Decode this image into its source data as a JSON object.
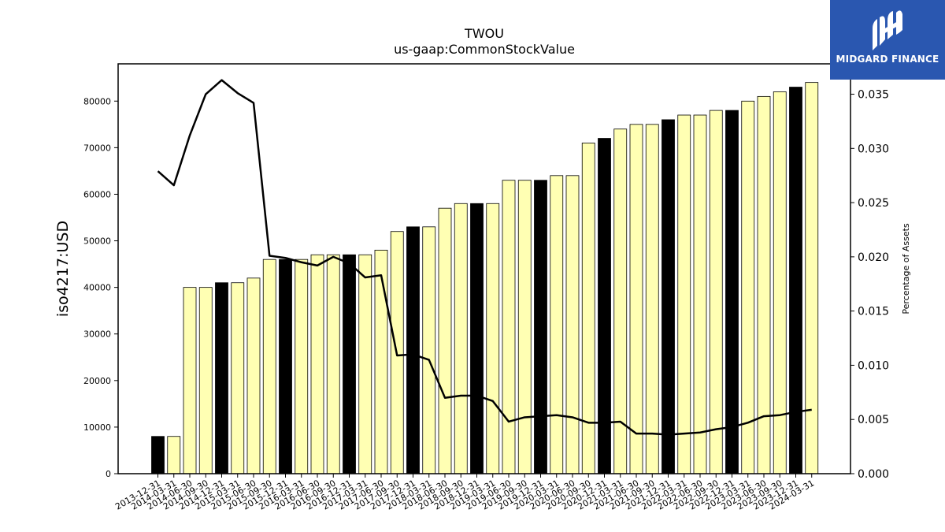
{
  "chart_data": {
    "type": "bar",
    "title": "TWOU",
    "subtitle": "us-gaap:CommonStockValue",
    "ylabel": "iso4217:USD",
    "y2label": "Percentage of Assets",
    "ylim": [
      0,
      88000
    ],
    "y2lim": [
      0,
      0.0378
    ],
    "yticks": [
      "0",
      "10000",
      "20000",
      "30000",
      "40000",
      "50000",
      "60000",
      "70000",
      "80000"
    ],
    "y2ticks": [
      "0.000",
      "0.005",
      "0.010",
      "0.015",
      "0.020",
      "0.025",
      "0.030",
      "0.035"
    ],
    "categories": [
      "2013-12-31",
      "2014-03-31",
      "2014-06-30",
      "2014-09-30",
      "2014-12-31",
      "2015-03-31",
      "2015-06-30",
      "2015-09-30",
      "2015-12-31",
      "2016-03-31",
      "2016-06-30",
      "2016-09-30",
      "2016-12-31",
      "2017-03-31",
      "2017-06-30",
      "2017-09-30",
      "2017-12-31",
      "2018-03-31",
      "2018-06-30",
      "2018-09-30",
      "2018-12-31",
      "2019-03-31",
      "2019-06-30",
      "2019-09-30",
      "2019-12-31",
      "2020-03-31",
      "2020-06-30",
      "2020-09-30",
      "2020-12-31",
      "2021-03-31",
      "2021-06-30",
      "2021-09-30",
      "2021-12-31",
      "2022-03-31",
      "2022-06-30",
      "2022-09-30",
      "2022-12-31",
      "2023-03-31",
      "2023-06-30",
      "2023-09-30",
      "2023-12-31",
      "2024-03-31"
    ],
    "series": [
      {
        "type": "bar",
        "values": [
          8000,
          8000,
          40000,
          40000,
          41000,
          41000,
          42000,
          46000,
          46000,
          46000,
          47000,
          47000,
          47000,
          47000,
          48000,
          52000,
          53000,
          53000,
          57000,
          58000,
          58000,
          58000,
          63000,
          63000,
          63000,
          64000,
          64000,
          71000,
          72000,
          74000,
          75000,
          75000,
          76000,
          77000,
          77000,
          78000,
          78000,
          80000,
          81000,
          82000,
          83000,
          84000
        ],
        "highlight": [
          true,
          false,
          false,
          false,
          true,
          false,
          false,
          false,
          true,
          false,
          false,
          false,
          true,
          false,
          false,
          false,
          true,
          false,
          false,
          false,
          true,
          false,
          false,
          false,
          true,
          false,
          false,
          false,
          true,
          false,
          false,
          false,
          true,
          false,
          false,
          false,
          true,
          false,
          false,
          false,
          true,
          false
        ],
        "colors": {
          "normal": "#ffffb3",
          "highlight": "#000000",
          "edge": "#000000"
        }
      },
      {
        "type": "line",
        "axis": "right",
        "values": [
          0.0279,
          0.0266,
          0.0312,
          0.035,
          0.0363,
          0.0351,
          0.0342,
          0.0201,
          0.0199,
          0.0195,
          0.0192,
          0.02,
          0.0194,
          0.0181,
          0.0183,
          0.0109,
          0.011,
          0.0105,
          0.007,
          0.0072,
          0.0072,
          0.0067,
          0.0048,
          0.0052,
          0.0053,
          0.0054,
          0.0052,
          0.0047,
          0.0047,
          0.0048,
          0.0037,
          0.0037,
          0.0036,
          0.0037,
          0.0038,
          0.0041,
          0.0043,
          0.0047,
          0.0053,
          0.0054,
          0.0057,
          0.0059
        ],
        "color": "#000000"
      }
    ],
    "grid": false,
    "legend": "none"
  },
  "logo": {
    "text": "MIDGARD FINANCE",
    "background": "#2a57b0",
    "icon": "midgard-m-logo-icon"
  }
}
